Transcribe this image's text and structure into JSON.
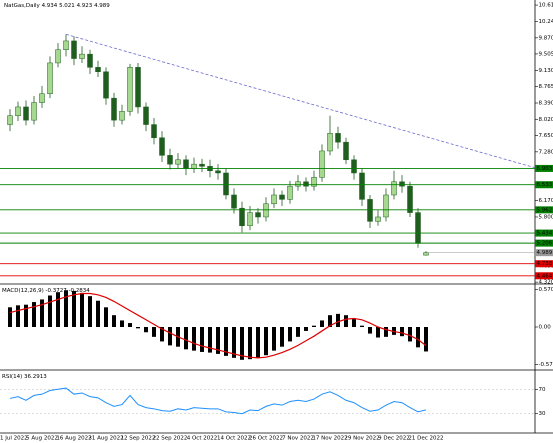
{
  "chart_data": [
    {
      "type": "candlestick",
      "title": "NatGas,Daily",
      "categories": [
        "1 Jul 2022",
        null,
        null,
        null,
        "5 Aug 2022",
        null,
        null,
        null,
        "16 Aug 2022",
        null,
        null,
        null,
        "31 Aug 2022",
        null,
        null,
        null,
        "12 Sep 2022",
        null,
        null,
        null,
        "22 Sep 2022",
        null,
        null,
        null,
        "4 Oct 2022",
        null,
        null,
        null,
        "14 Oct 2022",
        null,
        null,
        null,
        "26 Oct 2022",
        null,
        null,
        null,
        "7 Nov 2022",
        null,
        null,
        null,
        "17 Nov 2022",
        null,
        null,
        null,
        "29 Nov 2022",
        null,
        null,
        null,
        "9 Dec 2022",
        null,
        null,
        null,
        "21 Dec 2022"
      ],
      "open": [
        7.9,
        8.1,
        8.3,
        8.0,
        8.4,
        8.6,
        9.3,
        9.6,
        9.8,
        9.4,
        9.5,
        9.2,
        9.1,
        8.5,
        8.0,
        8.2,
        9.2,
        8.3,
        7.9,
        7.6,
        7.2,
        7.0,
        7.1,
        6.9,
        7.0,
        6.95,
        6.85,
        6.8,
        6.3,
        6.0,
        5.6,
        5.9,
        5.8,
        6.1,
        6.3,
        6.2,
        6.5,
        6.6,
        6.5,
        6.7,
        7.3,
        7.7,
        7.5,
        7.1,
        6.8,
        6.2,
        5.7,
        5.8,
        6.3,
        6.6,
        6.5,
        5.9,
        4.934
      ],
      "high": [
        8.25,
        8.42,
        8.45,
        8.55,
        8.78,
        9.45,
        9.75,
        9.95,
        9.9,
        9.68,
        9.6,
        9.35,
        9.2,
        8.62,
        8.35,
        9.28,
        9.3,
        8.4,
        8.05,
        7.75,
        7.35,
        7.25,
        7.2,
        7.15,
        7.12,
        7.1,
        7.0,
        6.9,
        6.45,
        6.15,
        6.05,
        6.0,
        6.25,
        6.45,
        6.4,
        6.62,
        6.75,
        6.7,
        6.85,
        7.45,
        8.1,
        7.85,
        7.6,
        7.2,
        6.9,
        6.3,
        5.95,
        6.45,
        6.85,
        6.75,
        6.6,
        6.0,
        5.021
      ],
      "low": [
        7.75,
        7.98,
        7.88,
        7.9,
        8.28,
        8.5,
        9.2,
        9.45,
        9.25,
        9.3,
        9.05,
        8.98,
        8.35,
        7.85,
        7.9,
        8.1,
        8.15,
        7.75,
        7.45,
        7.05,
        6.88,
        6.9,
        6.75,
        6.8,
        6.82,
        6.7,
        6.65,
        6.2,
        5.88,
        5.45,
        5.5,
        5.65,
        5.7,
        6.0,
        6.05,
        6.1,
        6.4,
        6.38,
        6.4,
        6.6,
        7.2,
        7.35,
        7.0,
        6.65,
        6.05,
        5.55,
        5.6,
        5.7,
        6.2,
        6.35,
        5.8,
        5.1,
        4.923
      ],
      "close": [
        8.1,
        8.3,
        8.0,
        8.4,
        8.6,
        9.3,
        9.6,
        9.8,
        9.4,
        9.5,
        9.2,
        9.1,
        8.5,
        8.0,
        8.2,
        9.2,
        8.3,
        7.9,
        7.6,
        7.2,
        7.0,
        7.1,
        6.9,
        7.0,
        6.95,
        6.85,
        6.8,
        6.3,
        6.0,
        5.6,
        5.9,
        5.8,
        6.1,
        6.3,
        6.2,
        6.5,
        6.6,
        6.5,
        6.7,
        7.3,
        7.7,
        7.5,
        7.1,
        6.8,
        6.2,
        5.7,
        5.8,
        6.3,
        6.6,
        6.5,
        5.9,
        5.2,
        4.989
      ],
      "up_color": "#a6d98f",
      "down_color": "#1f5e1f",
      "wick_color": "#1f5e1f",
      "price_color": "#9a9a9a",
      "ylim": [
        4.3,
        10.73
      ],
      "yticks": [
        10.615,
        {
          "value": 10.24,
          "label": "10.240"
        },
        {
          "value": 9.87,
          "label": "9.870"
        },
        9.505,
        {
          "value": 9.13,
          "label": "9.130"
        },
        8.765,
        {
          "value": 8.39,
          "label": "8.390"
        },
        {
          "value": 8.02,
          "label": "8.020"
        },
        {
          "value": 7.65,
          "label": "7.650"
        },
        {
          "value": 7.28,
          "label": "7.280"
        },
        {
          "value": 6.17,
          "label": "6.170"
        },
        {
          "value": 5.8,
          "label": "5.800"
        },
        {
          "value": 4.69,
          "label": "4.690"
        },
        {
          "value": 4.32,
          "label": "4.320"
        }
      ],
      "grid": false,
      "levels": [
        {
          "value": 6.903,
          "color": "#008000"
        },
        {
          "value": 6.533,
          "color": "#008000"
        },
        {
          "value": 5.962,
          "color": "#008000"
        },
        {
          "value": 5.434,
          "color": "#008000"
        },
        {
          "value": 5.206,
          "color": "#008000"
        },
        {
          "value": 4.738,
          "color": "#e00000"
        },
        {
          "value": 4.464,
          "color": "#e00000"
        }
      ],
      "trendline": {
        "x": [
          7,
          65.6
        ],
        "values": [
          9.95,
          6.92
        ],
        "color": "#6a6ad0"
      }
    },
    {
      "type": "macd",
      "title": "MACD(12,26,9)",
      "histogram": [
        0.3,
        0.33,
        0.34,
        0.38,
        0.42,
        0.48,
        0.53,
        0.56,
        0.55,
        0.52,
        0.47,
        0.4,
        0.3,
        0.18,
        0.1,
        0.06,
        -0.02,
        -0.08,
        -0.15,
        -0.22,
        -0.28,
        -0.3,
        -0.34,
        -0.36,
        -0.38,
        -0.39,
        -0.41,
        -0.44,
        -0.47,
        -0.5,
        -0.49,
        -0.47,
        -0.43,
        -0.36,
        -0.3,
        -0.22,
        -0.15,
        -0.06,
        0.02,
        0.1,
        0.18,
        0.2,
        0.18,
        0.12,
        0.02,
        -0.1,
        -0.16,
        -0.15,
        -0.12,
        -0.14,
        -0.22,
        -0.31,
        -0.3727
      ],
      "signal": [
        0.22,
        0.25,
        0.28,
        0.31,
        0.34,
        0.38,
        0.42,
        0.46,
        0.49,
        0.51,
        0.51,
        0.49,
        0.45,
        0.39,
        0.32,
        0.25,
        0.18,
        0.11,
        0.04,
        -0.03,
        -0.09,
        -0.15,
        -0.2,
        -0.25,
        -0.29,
        -0.32,
        -0.35,
        -0.38,
        -0.41,
        -0.44,
        -0.46,
        -0.47,
        -0.46,
        -0.43,
        -0.39,
        -0.34,
        -0.28,
        -0.21,
        -0.14,
        -0.06,
        0.02,
        0.08,
        0.12,
        0.13,
        0.11,
        0.06,
        0.0,
        -0.04,
        -0.07,
        -0.09,
        -0.13,
        -0.19,
        -0.2834
      ],
      "histogram_color": "#000000",
      "signal_color": "#e00000",
      "ylim": [
        -0.64,
        0.64
      ],
      "yticks": [
        0.5705,
        {
          "value": 0,
          "label": "0.00"
        },
        -0.5721
      ]
    },
    {
      "type": "rsi",
      "title": "RSI(14)",
      "values": [
        55,
        58,
        52,
        60,
        62,
        68,
        70,
        72,
        62,
        64,
        58,
        56,
        48,
        42,
        45,
        60,
        45,
        40,
        38,
        35,
        34,
        38,
        36,
        40,
        39,
        38,
        38,
        33,
        32,
        30,
        36,
        35,
        42,
        46,
        44,
        50,
        52,
        50,
        54,
        62,
        66,
        60,
        52,
        48,
        40,
        34,
        36,
        44,
        50,
        48,
        40,
        33,
        36.2913
      ],
      "color": "#1e90ff",
      "ylim": [
        0,
        100
      ],
      "yticks": [
        70,
        30
      ]
    }
  ]
}
